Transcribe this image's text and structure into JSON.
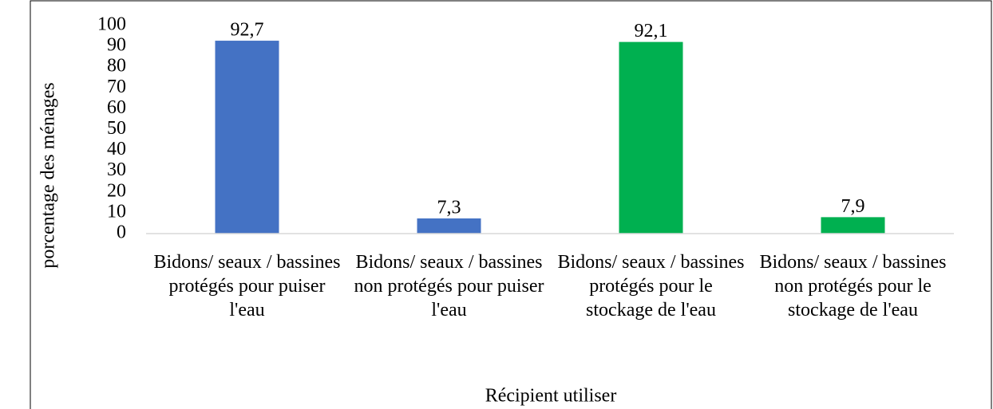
{
  "chart_data": {
    "type": "bar",
    "categories": [
      "Bidons/ seaux / bassines protégés pour puiser l'eau",
      "Bidons/ seaux / bassines non protégés pour puiser l'eau",
      "Bidons/ seaux / bassines protégés pour le stockage de l'eau",
      "Bidons/ seaux / bassines non protégés pour le stockage de l'eau"
    ],
    "values": [
      92.7,
      7.3,
      92.1,
      7.9
    ],
    "value_labels": [
      "92,7",
      "7,3",
      "92,1",
      "7,9"
    ],
    "colors": [
      "#4472c4",
      "#4472c4",
      "#00b050",
      "#00b050"
    ],
    "xlabel": "Récipient utiliser",
    "ylabel": "porcentage des ménages",
    "ylim": [
      0,
      100
    ],
    "yticks": [
      0,
      10,
      20,
      30,
      40,
      50,
      60,
      70,
      80,
      90,
      100
    ],
    "grid": false
  }
}
